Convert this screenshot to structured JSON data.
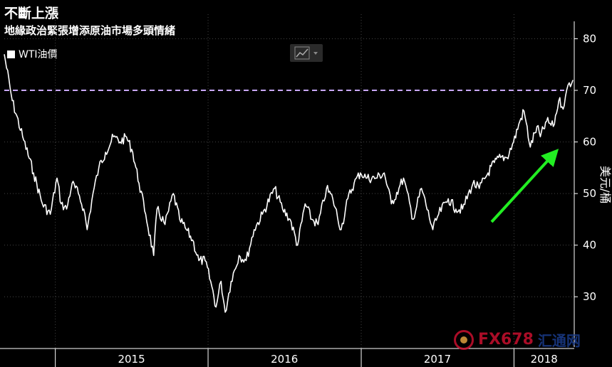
{
  "header": {
    "title": "不斷上漲",
    "subtitle": "地緣政治緊張增添原油市場多頭情緒"
  },
  "legend": {
    "label": "WTI油價"
  },
  "watermark": {
    "text1": "FX678",
    "text2": "汇通网"
  },
  "colors": {
    "background": "#000000",
    "line": "#ffffff",
    "reference": "#c9a8ff",
    "arrow": "#22ee22"
  },
  "icons": {
    "toolbar": "line-chart-icon",
    "toolbar_dropdown": "chevron-down-icon"
  },
  "chart_data": {
    "type": "line",
    "ylabel": "美元/桶",
    "ylim": [
      23,
      82
    ],
    "yticks": [
      30,
      40,
      50,
      60,
      70,
      80
    ],
    "xlim": [
      "2014-09-01",
      "2018-05-25"
    ],
    "xticks": [
      {
        "label": "2015",
        "start": "2015-01-01",
        "end": "2015-12-31"
      },
      {
        "label": "2016",
        "start": "2016-01-01",
        "end": "2016-12-31"
      },
      {
        "label": "2017",
        "start": "2017-01-01",
        "end": "2017-12-31"
      },
      {
        "label": "2018",
        "start": "2018-01-01",
        "end": "2018-05-25"
      }
    ],
    "reference_line": {
      "value": 70,
      "style": "dashed"
    },
    "annotation": {
      "type": "arrow",
      "direction": "up-right"
    },
    "series": [
      {
        "name": "WTI油價",
        "points": [
          [
            "2014-09-01",
            77
          ],
          [
            "2014-09-20",
            68
          ],
          [
            "2014-10-15",
            61
          ],
          [
            "2014-11-10",
            54
          ],
          [
            "2014-12-01",
            48
          ],
          [
            "2014-12-20",
            46
          ],
          [
            "2015-01-05",
            53
          ],
          [
            "2015-01-15",
            48
          ],
          [
            "2015-01-28",
            47
          ],
          [
            "2015-02-10",
            52
          ],
          [
            "2015-02-25",
            50
          ],
          [
            "2015-03-10",
            47
          ],
          [
            "2015-03-18",
            43
          ],
          [
            "2015-04-01",
            50
          ],
          [
            "2015-04-15",
            55
          ],
          [
            "2015-05-01",
            58
          ],
          [
            "2015-05-20",
            61
          ],
          [
            "2015-06-05",
            60
          ],
          [
            "2015-06-20",
            61
          ],
          [
            "2015-07-05",
            58
          ],
          [
            "2015-07-20",
            52
          ],
          [
            "2015-08-05",
            46
          ],
          [
            "2015-08-24",
            38
          ],
          [
            "2015-09-01",
            47
          ],
          [
            "2015-09-20",
            44
          ],
          [
            "2015-10-10",
            50
          ],
          [
            "2015-10-25",
            45
          ],
          [
            "2015-11-10",
            43
          ],
          [
            "2015-11-25",
            41
          ],
          [
            "2015-12-10",
            37
          ],
          [
            "2015-12-25",
            37
          ],
          [
            "2016-01-10",
            32
          ],
          [
            "2016-01-20",
            28
          ],
          [
            "2016-02-01",
            33
          ],
          [
            "2016-02-11",
            27
          ],
          [
            "2016-02-25",
            33
          ],
          [
            "2016-03-15",
            38
          ],
          [
            "2016-04-01",
            37
          ],
          [
            "2016-04-20",
            43
          ],
          [
            "2016-05-10",
            46
          ],
          [
            "2016-06-08",
            51
          ],
          [
            "2016-06-27",
            47
          ],
          [
            "2016-07-15",
            45
          ],
          [
            "2016-08-02",
            40
          ],
          [
            "2016-08-20",
            48
          ],
          [
            "2016-09-05",
            45
          ],
          [
            "2016-09-20",
            44
          ],
          [
            "2016-10-10",
            51
          ],
          [
            "2016-10-25",
            49
          ],
          [
            "2016-11-14",
            43
          ],
          [
            "2016-11-30",
            49
          ],
          [
            "2016-12-15",
            52
          ],
          [
            "2016-12-30",
            54
          ],
          [
            "2017-01-15",
            53
          ],
          [
            "2017-02-05",
            53
          ],
          [
            "2017-02-25",
            54
          ],
          [
            "2017-03-14",
            48
          ],
          [
            "2017-04-01",
            51
          ],
          [
            "2017-04-12",
            53
          ],
          [
            "2017-05-05",
            45
          ],
          [
            "2017-05-25",
            51
          ],
          [
            "2017-06-21",
            43
          ],
          [
            "2017-07-05",
            46
          ],
          [
            "2017-07-28",
            49
          ],
          [
            "2017-08-15",
            47
          ],
          [
            "2017-08-31",
            47
          ],
          [
            "2017-09-25",
            52
          ],
          [
            "2017-10-10",
            51
          ],
          [
            "2017-10-31",
            54
          ],
          [
            "2017-11-15",
            56
          ],
          [
            "2017-11-30",
            57
          ],
          [
            "2017-12-15",
            57
          ],
          [
            "2017-12-31",
            60
          ],
          [
            "2018-01-15",
            64
          ],
          [
            "2018-01-25",
            66
          ],
          [
            "2018-02-09",
            59
          ],
          [
            "2018-02-25",
            63
          ],
          [
            "2018-03-05",
            61
          ],
          [
            "2018-03-20",
            64
          ],
          [
            "2018-04-05",
            63
          ],
          [
            "2018-04-18",
            68
          ],
          [
            "2018-05-01",
            67
          ],
          [
            "2018-05-10",
            71
          ],
          [
            "2018-05-22",
            72
          ]
        ]
      }
    ]
  }
}
